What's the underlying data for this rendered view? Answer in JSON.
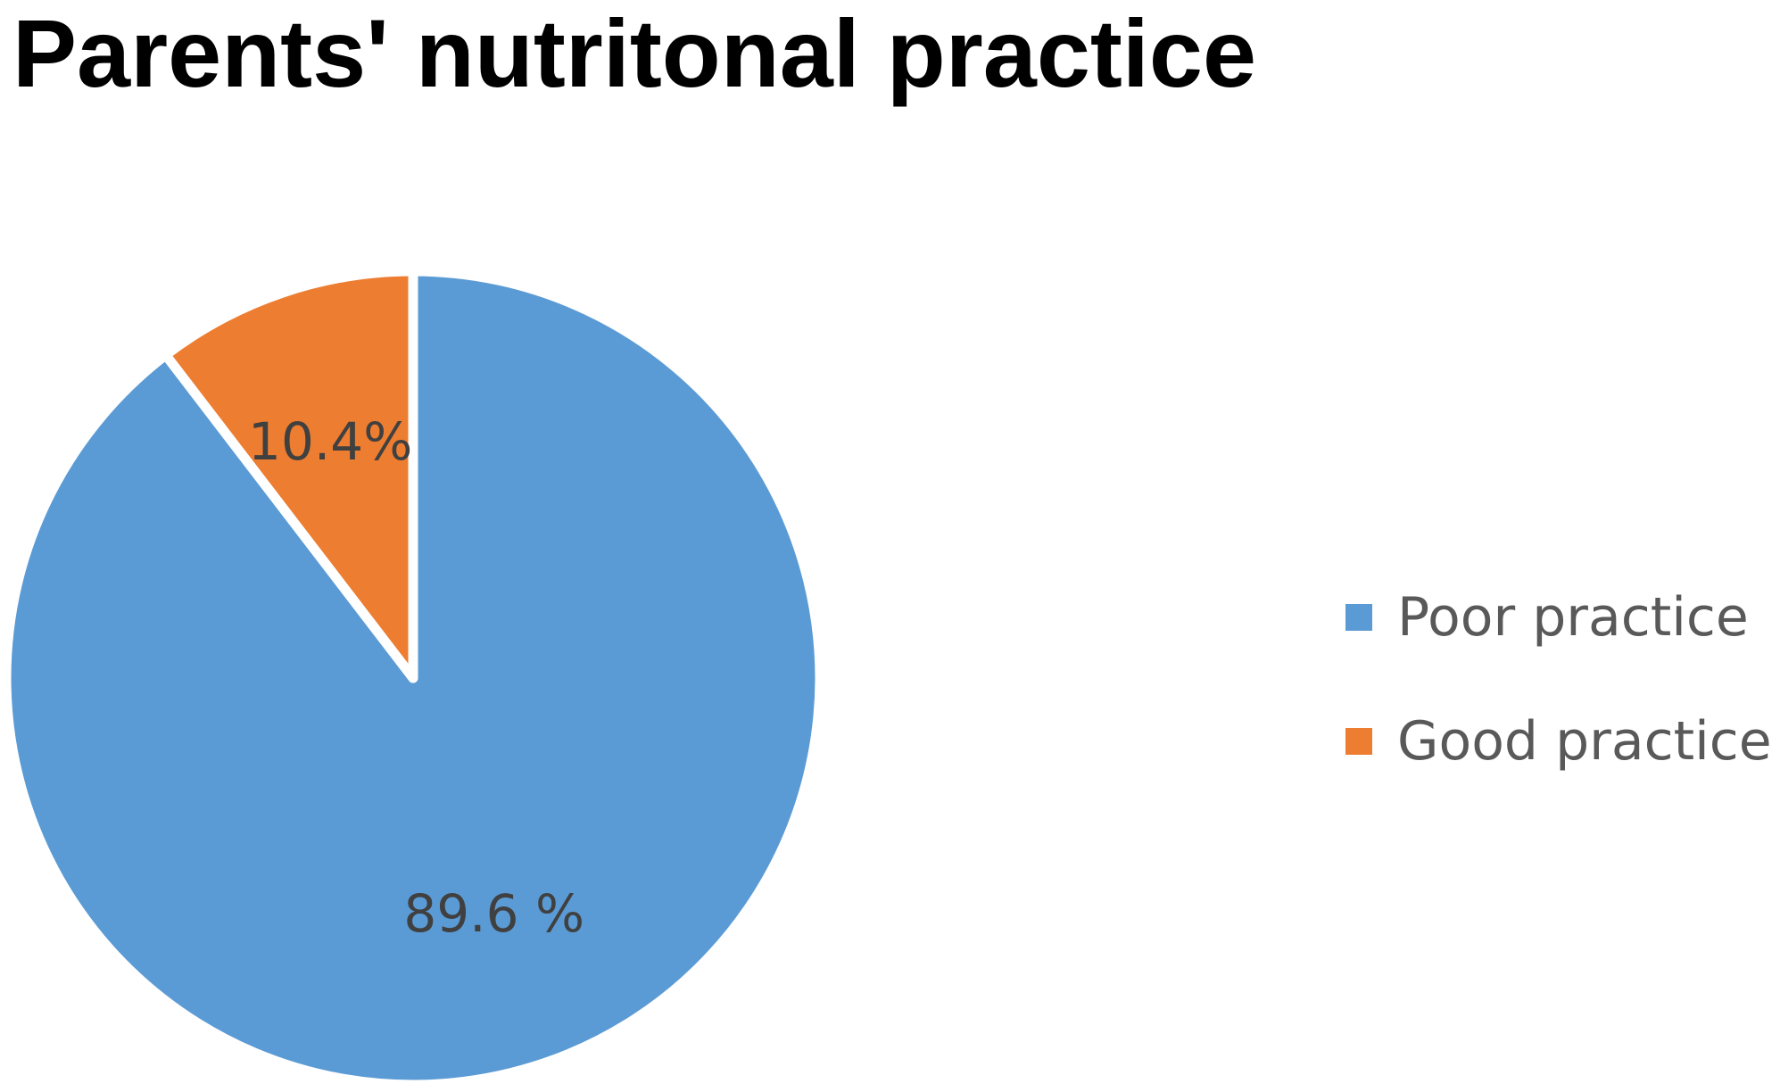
{
  "chart_data": {
    "type": "pie",
    "title": "Parents' nutritonal practice",
    "slices": [
      {
        "label": "Poor practice",
        "value": 89.6,
        "display_label": "89.6 %",
        "color": "#5B9BD5"
      },
      {
        "label": "Good practice",
        "value": 10.4,
        "display_label": "10.4%",
        "color": "#ED7D31"
      }
    ],
    "legend_position": "right",
    "start_angle": "top",
    "direction": "clockwise"
  }
}
